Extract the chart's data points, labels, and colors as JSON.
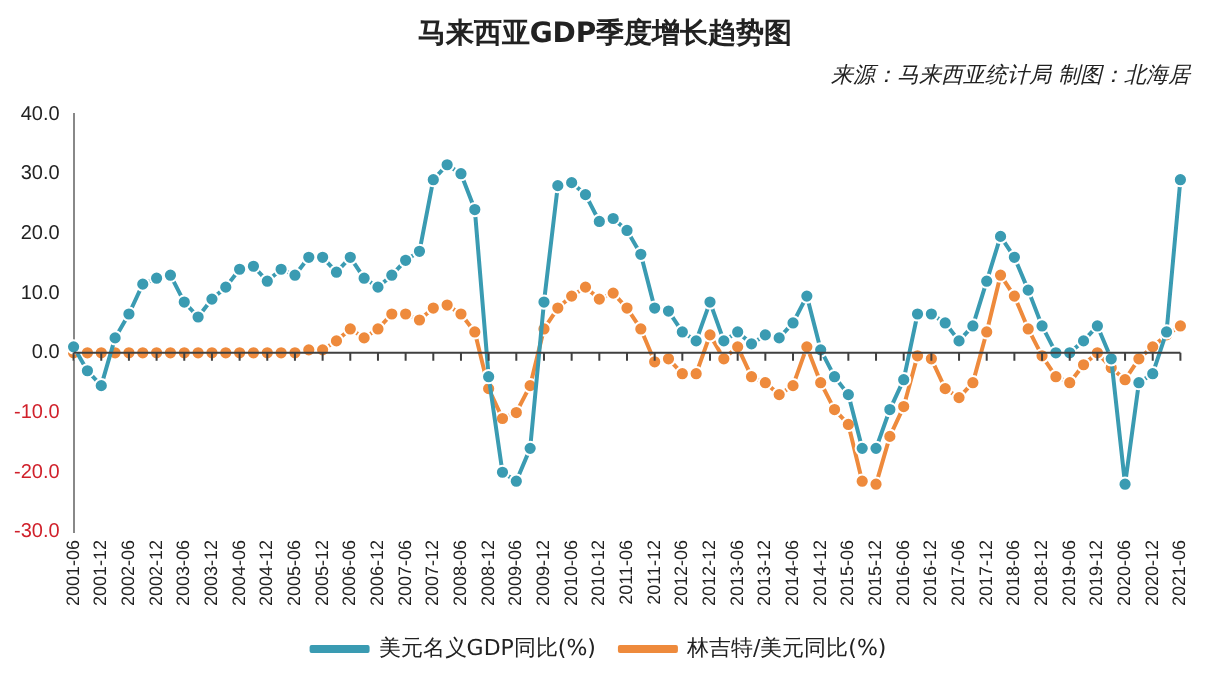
{
  "chart_data": {
    "type": "line",
    "title": "马来西亚GDP季度增长趋势图",
    "subtitle": "来源：马来西亚统计局 制图：北海居",
    "categories": [
      "2001-06",
      null,
      "2001-12",
      null,
      "2002-06",
      null,
      "2002-12",
      null,
      "2003-06",
      null,
      "2003-12",
      null,
      "2004-06",
      null,
      "2004-12",
      null,
      "2005-06",
      null,
      "2005-12",
      null,
      "2006-06",
      null,
      "2006-12",
      null,
      "2007-06",
      null,
      "2007-12",
      null,
      "2008-06",
      null,
      "2008-12",
      null,
      "2009-06",
      null,
      "2009-12",
      null,
      "2010-06",
      null,
      "2010-12",
      null,
      "2011-06",
      null,
      "2011-12",
      null,
      "2012-06",
      null,
      "2012-12",
      null,
      "2013-06",
      null,
      "2013-12",
      null,
      "2014-06",
      null,
      "2014-12",
      null,
      "2015-06",
      null,
      "2015-12",
      null,
      "2016-06",
      null,
      "2016-12",
      null,
      "2017-06",
      null,
      "2017-12",
      null,
      "2018-06",
      null,
      "2018-12",
      null,
      "2019-06",
      null,
      "2019-12",
      null,
      "2020-06",
      null,
      "2020-12",
      null,
      "2021-06"
    ],
    "series": [
      {
        "name": "美元名义GDP同比(%)",
        "color": "#3a9bb2",
        "values": [
          1,
          -3,
          -5.5,
          2.5,
          6.5,
          11.5,
          12.5,
          13,
          8.5,
          6,
          9,
          11,
          14,
          14.5,
          12,
          14,
          13,
          16,
          16,
          13.5,
          16,
          12.5,
          11,
          13,
          15.5,
          17,
          29,
          31.5,
          30,
          24,
          -4,
          -20,
          -21.5,
          -16,
          8.5,
          28,
          28.5,
          26.5,
          22,
          22.5,
          20.5,
          16.5,
          7.5,
          7,
          3.5,
          2,
          8.5,
          2,
          3.5,
          1.5,
          3,
          2.5,
          5,
          9.5,
          0.5,
          -4,
          -7,
          -16,
          -16,
          -9.5,
          -4.5,
          6.5,
          6.5,
          5,
          2,
          4.5,
          12,
          19.5,
          16,
          10.5,
          4.5,
          0,
          0,
          2,
          4.5,
          -1,
          -22,
          -5,
          -3.5,
          3.5,
          29
        ]
      },
      {
        "name": "林吉特/美元同比(%)",
        "color": "#ee8a3c",
        "values": [
          0,
          0,
          0,
          0,
          0,
          0,
          0,
          0,
          0,
          0,
          0,
          0,
          0,
          0,
          0,
          0,
          0,
          0.5,
          0.5,
          2,
          4,
          2.5,
          4,
          6.5,
          6.5,
          5.5,
          7.5,
          8,
          6.5,
          3.5,
          -6,
          -11,
          -10,
          -5.5,
          4,
          7.5,
          9.5,
          11,
          9,
          10,
          7.5,
          4,
          -1.5,
          -1,
          -3.5,
          -3.5,
          3,
          -1,
          1,
          -4,
          -5,
          -7,
          -5.5,
          1,
          -5,
          -9.5,
          -12,
          -21.5,
          -22,
          -14,
          -9,
          -0.5,
          -1,
          -6,
          -7.5,
          -5,
          3.5,
          13,
          9.5,
          4,
          -0.5,
          -4,
          -5,
          -2,
          0,
          -2.5,
          -4.5,
          -1,
          1,
          3,
          4.5
        ]
      }
    ],
    "ylim": [
      -30,
      40
    ],
    "yticks": [
      {
        "value": -30,
        "label": "-30.0"
      },
      {
        "value": -20,
        "label": "-20.0"
      },
      {
        "value": -10,
        "label": "-10.0"
      },
      {
        "value": 0,
        "label": "0.0"
      },
      {
        "value": 10,
        "label": "10.0"
      },
      {
        "value": 20,
        "label": "20.0"
      },
      {
        "value": 30,
        "label": "30.0"
      },
      {
        "value": 40,
        "label": "40.0"
      }
    ],
    "ref_lines": [
      {
        "axis": "y",
        "value": 0,
        "color": "#404040"
      }
    ],
    "marker": "circle",
    "line_style": "solid",
    "legend": "bottom",
    "grid": false
  }
}
